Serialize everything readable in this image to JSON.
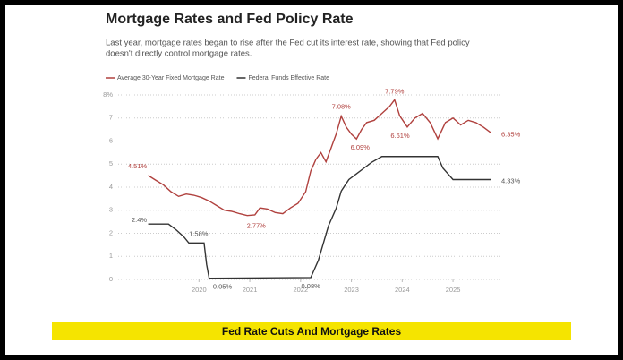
{
  "chart_data": {
    "type": "line",
    "title": "Mortgage Rates and Fed Policy Rate",
    "subtitle": [
      "Last year, mortgage rates began to rise after the Fed cut its interest rate, showing that Fed policy",
      "doesn't directly control mortgage rates."
    ],
    "series": [
      {
        "name": "Average 30-Year Fixed Mortgage Rate",
        "color": "#b0413e",
        "x": [
          2019.0,
          2019.15,
          2019.3,
          2019.45,
          2019.6,
          2019.75,
          2019.9,
          2020.05,
          2020.2,
          2020.35,
          2020.5,
          2020.65,
          2020.8,
          2020.95,
          2021.1,
          2021.2,
          2021.35,
          2021.5,
          2021.65,
          2021.8,
          2021.95,
          2022.1,
          2022.2,
          2022.3,
          2022.4,
          2022.5,
          2022.6,
          2022.7,
          2022.8,
          2022.9,
          2023.0,
          2023.1,
          2023.2,
          2023.3,
          2023.45,
          2023.6,
          2023.75,
          2023.85,
          2023.95,
          2024.1,
          2024.25,
          2024.4,
          2024.55,
          2024.7,
          2024.85,
          2025.0,
          2025.15,
          2025.3,
          2025.45,
          2025.6,
          2025.75
        ],
        "values": [
          4.51,
          4.3,
          4.1,
          3.8,
          3.6,
          3.7,
          3.65,
          3.55,
          3.4,
          3.2,
          3.0,
          2.95,
          2.85,
          2.77,
          2.8,
          3.1,
          3.05,
          2.9,
          2.85,
          3.1,
          3.3,
          3.8,
          4.7,
          5.2,
          5.5,
          5.1,
          5.7,
          6.3,
          7.08,
          6.6,
          6.3,
          6.09,
          6.5,
          6.8,
          6.9,
          7.2,
          7.5,
          7.79,
          7.1,
          6.61,
          7.0,
          7.2,
          6.8,
          6.1,
          6.8,
          7.0,
          6.7,
          6.9,
          6.8,
          6.6,
          6.35
        ]
      },
      {
        "name": "Federal Funds Effective Rate",
        "color": "#333333",
        "x": [
          2019.0,
          2019.4,
          2019.55,
          2019.7,
          2019.8,
          2020.1,
          2020.15,
          2020.2,
          2022.2,
          2022.25,
          2022.35,
          2022.45,
          2022.55,
          2022.7,
          2022.8,
          2022.95,
          2023.1,
          2023.25,
          2023.4,
          2023.6,
          2024.7,
          2024.8,
          2024.9,
          2025.0,
          2025.75
        ],
        "values": [
          2.4,
          2.4,
          2.15,
          1.85,
          1.58,
          1.58,
          0.65,
          0.05,
          0.08,
          0.33,
          0.83,
          1.58,
          2.33,
          3.08,
          3.83,
          4.33,
          4.58,
          4.83,
          5.08,
          5.33,
          5.33,
          4.83,
          4.58,
          4.33,
          4.33
        ]
      }
    ],
    "annotations": [
      {
        "label": "4.51%",
        "x": 2019.0,
        "y": 4.51
      },
      {
        "label": "2.4%",
        "x": 2019.0,
        "y": 2.4
      },
      {
        "label": "1.58%",
        "x": 2019.85,
        "y": 1.58
      },
      {
        "label": "0.05%",
        "x": 2020.25,
        "y": 0.05
      },
      {
        "label": "2.77%",
        "x": 2020.95,
        "y": 2.77
      },
      {
        "label": "0.08%",
        "x": 2022.2,
        "y": 0.08
      },
      {
        "label": "7.08%",
        "x": 2022.8,
        "y": 7.08
      },
      {
        "label": "6.09%",
        "x": 2023.1,
        "y": 6.09
      },
      {
        "label": "7.79%",
        "x": 2023.85,
        "y": 7.79
      },
      {
        "label": "6.61%",
        "x": 2024.1,
        "y": 6.61
      },
      {
        "label": "6.35%",
        "x": 2025.75,
        "y": 6.35
      },
      {
        "label": "4.33%",
        "x": 2025.75,
        "y": 4.33
      }
    ],
    "xlim": [
      2018.55,
      2025.95
    ],
    "xticks": [
      2020,
      2021,
      2022,
      2023,
      2024,
      2025
    ],
    "ylim": [
      0,
      8
    ],
    "yticks": [
      0,
      1,
      2,
      3,
      4,
      5,
      6,
      7,
      {
        "value": 8,
        "label": "8%"
      }
    ],
    "grid": true
  },
  "banner": "Fed Rate Cuts And Mortgage Rates"
}
